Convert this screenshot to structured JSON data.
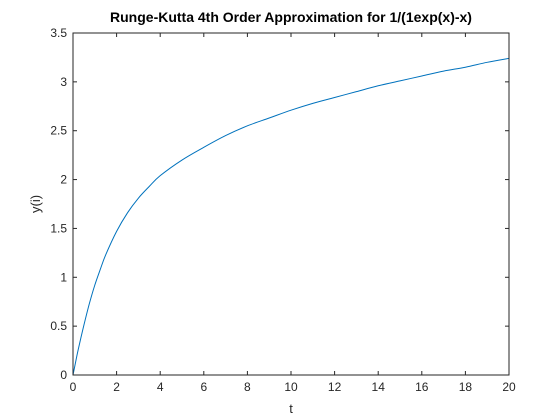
{
  "chart_data": {
    "type": "line",
    "title": "Runge-Kutta 4th Order Approximation for 1/(1exp(x)-x)",
    "xlabel": "t",
    "ylabel": "y(i)",
    "xlim": [
      0,
      20
    ],
    "ylim": [
      0,
      3.5
    ],
    "x_ticks": [
      0,
      2,
      4,
      6,
      8,
      10,
      12,
      14,
      16,
      18,
      20
    ],
    "y_ticks": [
      0,
      0.5,
      1,
      1.5,
      2,
      2.5,
      3,
      3.5
    ],
    "x_tick_labels": [
      "0",
      "2",
      "4",
      "6",
      "8",
      "10",
      "12",
      "14",
      "16",
      "18",
      "20"
    ],
    "y_tick_labels": [
      "0",
      "0.5",
      "1",
      "1.5",
      "2",
      "2.5",
      "3",
      "3.5"
    ],
    "grid": false,
    "series": [
      {
        "color": "#0072BD",
        "x": [
          0,
          0.1,
          0.2,
          0.3,
          0.5,
          0.75,
          1,
          1.25,
          1.5,
          2,
          2.5,
          3,
          3.5,
          4,
          5,
          6,
          7,
          8,
          9,
          10,
          11,
          12,
          13,
          14,
          15,
          16,
          17,
          18,
          19,
          20
        ],
        "y": [
          0,
          0.11,
          0.22,
          0.32,
          0.51,
          0.73,
          0.92,
          1.08,
          1.23,
          1.47,
          1.66,
          1.81,
          1.93,
          2.04,
          2.2,
          2.33,
          2.45,
          2.55,
          2.63,
          2.71,
          2.78,
          2.84,
          2.9,
          2.96,
          3.01,
          3.06,
          3.11,
          3.15,
          3.2,
          3.24
        ]
      }
    ]
  }
}
